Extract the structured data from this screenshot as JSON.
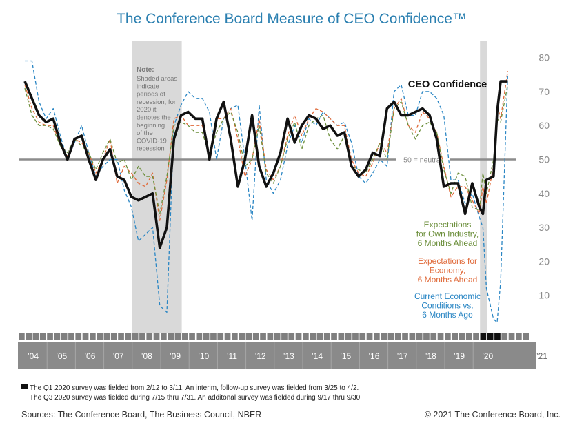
{
  "chart_data": {
    "type": "line",
    "title": "The Conference Board Measure of CEO Confidence™",
    "ylim": [
      0,
      80
    ],
    "yticks": [
      10,
      20,
      30,
      40,
      50,
      60,
      70,
      80
    ],
    "grid": false,
    "neutral_line": {
      "value": 50,
      "label": "50 = neutral"
    },
    "recessions": [
      {
        "start": 2007.75,
        "end": 2009.5
      },
      {
        "start": 2020.0,
        "end": 2020.25
      }
    ],
    "note": {
      "title": "Note:",
      "lines": [
        "Shaded areas",
        "indicate",
        "periods of",
        "recession; for",
        "2020 it",
        "denotes the",
        "beginning",
        "of the",
        "COVID-19",
        "recession"
      ]
    },
    "year_labels": [
      "’04",
      "’05",
      "’06",
      "’07",
      "’08",
      "’09",
      "’10",
      "’11",
      "’12",
      "’13",
      "’14",
      "’15",
      "’16",
      "’17",
      "’18",
      "’19",
      "’20",
      "’21"
    ],
    "x_quarters": [
      "2004Q1",
      "2004Q2",
      "2004Q3",
      "2004Q4",
      "2005Q1",
      "2005Q2",
      "2005Q3",
      "2005Q4",
      "2006Q1",
      "2006Q2",
      "2006Q3",
      "2006Q4",
      "2007Q1",
      "2007Q2",
      "2007Q3",
      "2007Q4",
      "2008Q1",
      "2008Q2",
      "2008Q3",
      "2008Q4",
      "2009Q1",
      "2009Q2",
      "2009Q3",
      "2009Q4",
      "2010Q1",
      "2010Q2",
      "2010Q3",
      "2010Q4",
      "2011Q1",
      "2011Q2",
      "2011Q3",
      "2011Q4",
      "2012Q1",
      "2012Q2",
      "2012Q3",
      "2012Q4",
      "2013Q1",
      "2013Q2",
      "2013Q3",
      "2013Q4",
      "2014Q1",
      "2014Q2",
      "2014Q3",
      "2014Q4",
      "2015Q1",
      "2015Q2",
      "2015Q3",
      "2015Q4",
      "2016Q1",
      "2016Q2",
      "2016Q3",
      "2016Q4",
      "2017Q1",
      "2017Q2",
      "2017Q3",
      "2017Q4",
      "2018Q1",
      "2018Q2",
      "2018Q3",
      "2018Q4",
      "2019Q1",
      "2019Q2",
      "2019Q3",
      "2019Q4",
      "2020Q1",
      "2020Q1b",
      "2020Q2",
      "2020Q3",
      "2020Q3b",
      "2020Q4",
      "2021Q1"
    ],
    "series": [
      {
        "name": "Current Economic Conditions vs. 6 Months Ago",
        "color": "#2a86c4",
        "style": "dashed",
        "values": [
          79,
          79,
          67,
          62,
          65,
          57,
          50,
          55,
          60,
          52,
          45,
          48,
          50,
          50,
          41,
          36,
          26,
          28,
          30,
          7,
          5,
          60,
          66,
          70,
          68,
          68,
          64,
          50,
          62,
          65,
          66,
          50,
          32,
          66,
          44,
          40,
          44,
          54,
          60,
          55,
          62,
          60,
          64,
          62,
          60,
          61,
          55,
          45,
          43,
          46,
          50,
          48,
          70,
          72,
          63,
          63,
          70,
          70,
          68,
          63,
          44,
          44,
          37,
          40,
          33,
          30,
          12,
          3,
          2,
          14,
          75
        ]
      },
      {
        "name": "Expectations for Economy, 6 Months Ahead",
        "color": "#e06a3a",
        "style": "dashed",
        "values": [
          72,
          65,
          61,
          60,
          60,
          54,
          51,
          56,
          55,
          52,
          46,
          50,
          56,
          43,
          48,
          46,
          43,
          42,
          46,
          32,
          44,
          62,
          63,
          60,
          60,
          60,
          51,
          62,
          62,
          65,
          56,
          45,
          50,
          62,
          47,
          44,
          48,
          57,
          63,
          57,
          62,
          65,
          64,
          62,
          60,
          60,
          50,
          46,
          45,
          49,
          55,
          52,
          65,
          68,
          60,
          58,
          64,
          62,
          58,
          48,
          39,
          42,
          42,
          38,
          34,
          42,
          37,
          48,
          66,
          62,
          76
        ]
      },
      {
        "name": "Expectations for Own Industry, 6 Months Ahead",
        "color": "#6b8e3a",
        "style": "dashed",
        "values": [
          71,
          63,
          60,
          60,
          59,
          54,
          52,
          56,
          54,
          52,
          47,
          52,
          56,
          49,
          50,
          44,
          48,
          45,
          45,
          34,
          45,
          60,
          61,
          60,
          58,
          58,
          51,
          58,
          62,
          64,
          58,
          48,
          50,
          60,
          46,
          43,
          48,
          56,
          61,
          53,
          60,
          62,
          63,
          56,
          53,
          57,
          48,
          47,
          46,
          50,
          55,
          50,
          65,
          67,
          60,
          56,
          60,
          61,
          58,
          47,
          40,
          46,
          45,
          36,
          35,
          46,
          40,
          50,
          62,
          61,
          72
        ]
      },
      {
        "name": "CEO Confidence",
        "color": "#111111",
        "style": "solid",
        "values": [
          73,
          68,
          63,
          61,
          62,
          55,
          50,
          56,
          57,
          50,
          44,
          50,
          53,
          45,
          44,
          39,
          38,
          39,
          40,
          24,
          30,
          56,
          63,
          64,
          62,
          62,
          50,
          62,
          67,
          56,
          42,
          50,
          63,
          48,
          42,
          46,
          52,
          62,
          55,
          60,
          63,
          62,
          59,
          60,
          57,
          58,
          48,
          45,
          47,
          52,
          51,
          65,
          67,
          63,
          63,
          64,
          65,
          63,
          56,
          42,
          43,
          43,
          34,
          43,
          36,
          34,
          44,
          45,
          64,
          73,
          73
        ]
      }
    ],
    "series_labels": {
      "ceo": "CEO Confidence",
      "industry": [
        "Expectations",
        "for Own Industry,",
        "6 Months Ahead"
      ],
      "economy": [
        "Expectations for",
        "Economy,",
        "6 Months Ahead"
      ],
      "current": [
        "Current Economic",
        "Conditions vs.",
        "6 Months Ago"
      ]
    }
  },
  "footnotes": [
    "The Q1 2020 survey was fielded from 2/12 to 3/11. An interim, follow-up survey was fielded from 3/25 to 4/2.",
    "The Q3 2020 survey was fielded during 7/15 thru 7/31. An additonal survey was fielded during 9/17 thru 9/30"
  ],
  "sources": "Sources: The Conference Board, The Business Council, NBER",
  "copyright": "© 2021 The Conference Board, Inc."
}
